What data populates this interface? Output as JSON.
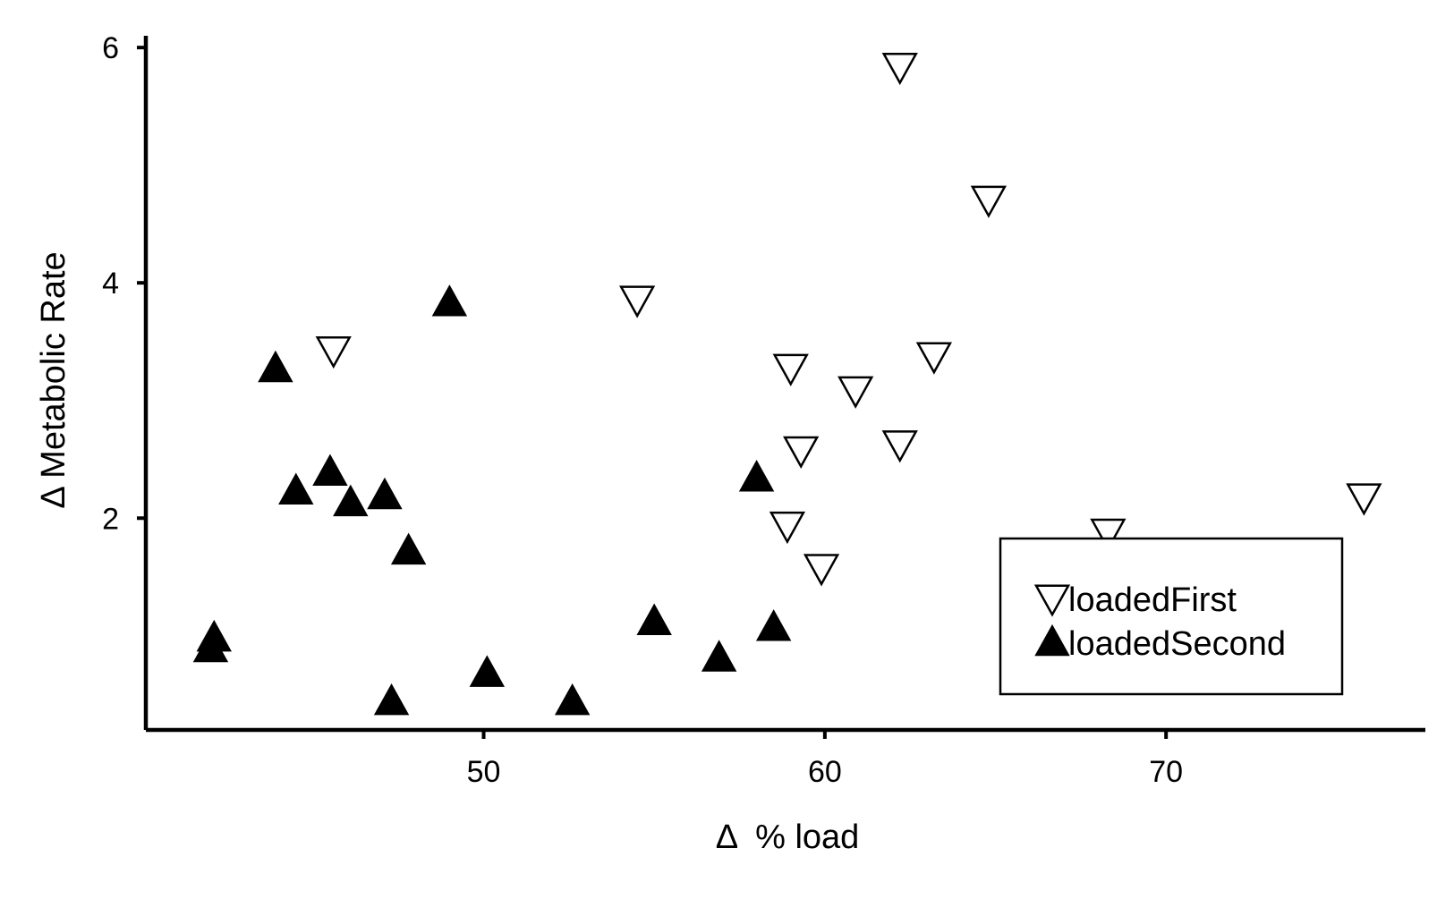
{
  "chart_data": {
    "type": "scatter",
    "xlabel": "Δ  % load",
    "ylabel": "Δ Metabolic Rate",
    "xlim": [
      40.1,
      77.6
    ],
    "ylim": [
      0.2,
      6.1
    ],
    "x_ticks": [
      50,
      60,
      70
    ],
    "x_tick_labels": [
      "50",
      "60",
      "70"
    ],
    "y_ticks": [
      2,
      4,
      6
    ],
    "y_tick_labels": [
      "2",
      "4",
      "6"
    ],
    "grid": false,
    "legend_position": "bottom-right",
    "series": [
      {
        "name": "loadedFirst",
        "marker": "open-down-triangle",
        "color": "#000000",
        "points": [
          {
            "x": 45.6,
            "y": 3.42
          },
          {
            "x": 54.5,
            "y": 3.85
          },
          {
            "x": 59.0,
            "y": 3.27
          },
          {
            "x": 59.3,
            "y": 2.57
          },
          {
            "x": 58.9,
            "y": 1.93
          },
          {
            "x": 59.9,
            "y": 1.57
          },
          {
            "x": 60.9,
            "y": 3.08
          },
          {
            "x": 62.2,
            "y": 2.62
          },
          {
            "x": 62.2,
            "y": 5.83
          },
          {
            "x": 63.2,
            "y": 3.37
          },
          {
            "x": 64.8,
            "y": 4.7
          },
          {
            "x": 68.3,
            "y": 1.87
          },
          {
            "x": 75.8,
            "y": 2.17
          }
        ]
      },
      {
        "name": "loadedSecond",
        "marker": "filled-up-triangle",
        "color": "#000000",
        "points": [
          {
            "x": 42.0,
            "y": 0.9
          },
          {
            "x": 42.1,
            "y": 0.99
          },
          {
            "x": 43.9,
            "y": 3.28
          },
          {
            "x": 44.5,
            "y": 2.24
          },
          {
            "x": 45.5,
            "y": 2.4
          },
          {
            "x": 46.1,
            "y": 2.14
          },
          {
            "x": 47.1,
            "y": 2.2
          },
          {
            "x": 47.3,
            "y": 0.45
          },
          {
            "x": 47.8,
            "y": 1.73
          },
          {
            "x": 49.0,
            "y": 3.84
          },
          {
            "x": 50.1,
            "y": 0.69
          },
          {
            "x": 52.6,
            "y": 0.45
          },
          {
            "x": 55.0,
            "y": 1.13
          },
          {
            "x": 56.9,
            "y": 0.82
          },
          {
            "x": 58.0,
            "y": 2.35
          },
          {
            "x": 58.5,
            "y": 1.08
          }
        ]
      }
    ]
  }
}
